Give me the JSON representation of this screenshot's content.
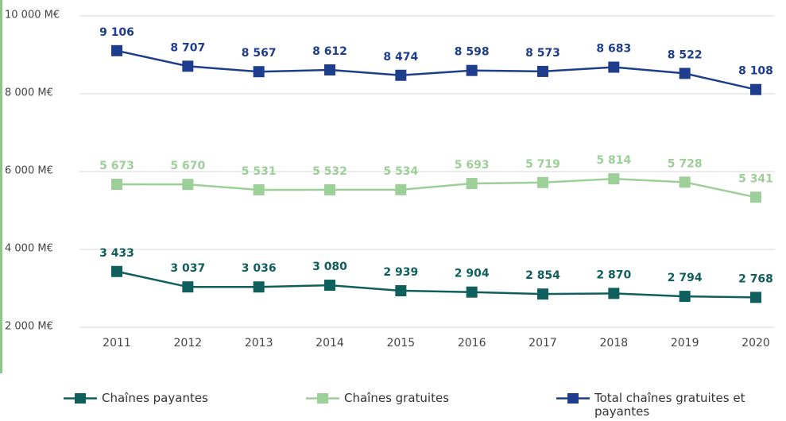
{
  "chart_data": {
    "type": "line",
    "categories": [
      "2011",
      "2012",
      "2013",
      "2014",
      "2015",
      "2016",
      "2017",
      "2018",
      "2019",
      "2020"
    ],
    "series": [
      {
        "name": "Chaînes payantes",
        "color": "#0f5f5c",
        "values": [
          3433,
          3037,
          3036,
          3080,
          2939,
          2904,
          2854,
          2870,
          2794,
          2768
        ],
        "value_labels": [
          "3 433",
          "3 037",
          "3 036",
          "3 080",
          "2 939",
          "2 904",
          "2 854",
          "2 870",
          "2 794",
          "2 768"
        ]
      },
      {
        "name": "Chaînes gratuites",
        "color": "#9dcf98",
        "values": [
          5673,
          5670,
          5531,
          5532,
          5534,
          5693,
          5719,
          5814,
          5728,
          5341
        ],
        "value_labels": [
          "5 673",
          "5 670",
          "5 531",
          "5 532",
          "5 534",
          "5 693",
          "5 719",
          "5 814",
          "5 728",
          "5 341"
        ]
      },
      {
        "name": "Total chaînes gratuites et payantes",
        "color": "#1e3d8c",
        "values": [
          9106,
          8707,
          8567,
          8612,
          8474,
          8598,
          8573,
          8683,
          8522,
          8108
        ],
        "value_labels": [
          "9 106",
          "8 707",
          "8 567",
          "8 612",
          "8 474",
          "8 598",
          "8 573",
          "8 683",
          "8 522",
          "8 108"
        ]
      }
    ],
    "ylim": [
      2000,
      10000
    ],
    "yticks": [
      {
        "value": 2000,
        "label": "2 000 M€"
      },
      {
        "value": 4000,
        "label": "4 000 M€"
      },
      {
        "value": 6000,
        "label": "6 000 M€"
      },
      {
        "value": 8000,
        "label": "8 000 M€"
      },
      {
        "value": 10000,
        "label": "10 000 M€"
      }
    ],
    "grid": true,
    "legend": "bottom"
  }
}
